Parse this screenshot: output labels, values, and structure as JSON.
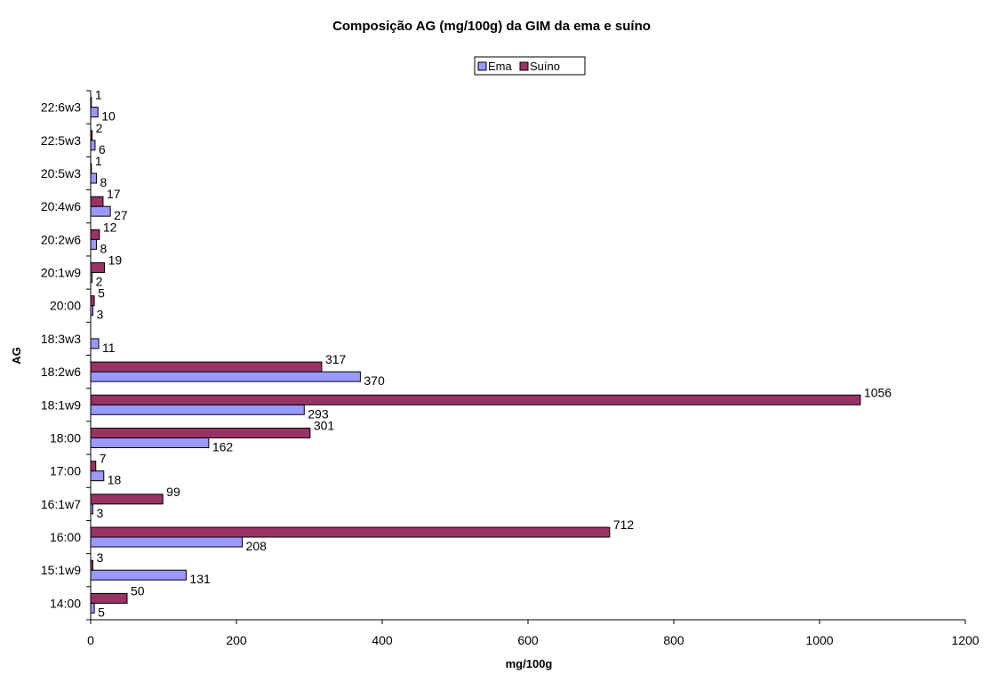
{
  "chart_data": {
    "type": "bar",
    "orientation": "horizontal",
    "title": "Composição AG (mg/100g) da GIM da ema e suíno",
    "xlabel": "mg/100g",
    "ylabel": "AG",
    "xlim": [
      0,
      1200
    ],
    "x_ticks": [
      "0",
      "200",
      "400",
      "600",
      "800",
      "1000",
      "1200"
    ],
    "grid": false,
    "legend_position": "top-center",
    "categories": [
      "14:00",
      "15:1w9",
      "16:00",
      "16:1w7",
      "17:00",
      "18:00",
      "18:1w9",
      "18:2w6",
      "18:3w3",
      "20:00",
      "20:1w9",
      "20:2w6",
      "20:4w6",
      "20:5w3",
      "22:5w3",
      "22:6w3"
    ],
    "series": [
      {
        "name": "Ema",
        "color": "#9999ff",
        "values": [
          5,
          131,
          208,
          3,
          18,
          162,
          293,
          370,
          11,
          3,
          2,
          8,
          27,
          8,
          6,
          10
        ],
        "labels": [
          "5",
          "131",
          "208",
          "3",
          "18",
          "162",
          "293",
          "370",
          "11",
          "3",
          "2",
          "8",
          "27",
          "8",
          "6",
          "10"
        ]
      },
      {
        "name": "Suíno",
        "color": "#993366",
        "values": [
          50,
          3,
          712,
          99,
          7,
          301,
          1056,
          317,
          null,
          5,
          19,
          12,
          17,
          1,
          2,
          1
        ],
        "labels": [
          "50",
          "3",
          "712",
          "99",
          "7",
          "301",
          "1056",
          "317",
          "",
          "5",
          "19",
          "12",
          "17",
          "1",
          "2",
          "1"
        ]
      }
    ]
  }
}
